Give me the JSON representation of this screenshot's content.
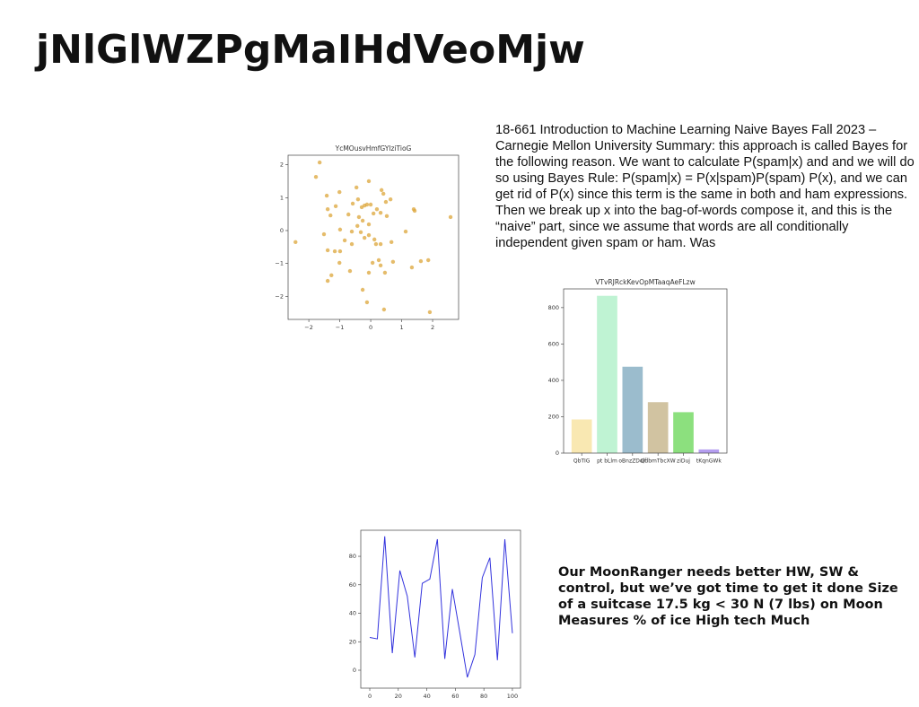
{
  "title": "jNlGlWZPgMaIHdVeoMjw",
  "paragraph": "18-661 Introduction to Machine Learning Naive Bayes Fall 2023 – Carnegie Mellon University Summary: this approach is called Bayes for the following reason. We want to calculate P(spam|x) and and we will do so using Bayes Rule: P(spam|x) = P(x|spam)P(spam) P(x), and we can get rid of P(x) since this term is the same in both and ham expressions. Then we break up x into the bag-of-words compose it, and this is the “naive” part, since we assume that words are all conditionally independent given spam or ham. Was",
  "note": "Our MoonRanger needs better HW, SW & control, but we’ve got time to get it done Size of a suitcase 17.5 kg < 30 N (7 lbs) on Moon Measures % of ice High tech Much",
  "chart_data": [
    {
      "type": "scatter",
      "title": "YcMOusvHmfGYlziTioG",
      "color": "#dca63a",
      "x": [
        -1.65,
        -1.77,
        -1.42,
        -1.01,
        -0.46,
        -0.06,
        0.35,
        0.41,
        0.49,
        0.64,
        -1.39,
        -1.3,
        -1.13,
        -0.72,
        -0.58,
        -0.41,
        -0.29,
        -0.2,
        -0.12,
        0,
        0.09,
        0.2,
        0.32,
        0.52,
        1.39,
        1.42,
        2.58,
        -0.38,
        -0.26,
        -0.06,
        -0.43,
        -0.32,
        -0.61,
        -0.99,
        -1.51,
        -2.43,
        -0.84,
        -0.61,
        -0.2,
        -0.06,
        0.12,
        0.17,
        0.32,
        0.67,
        1.13,
        -1.39,
        -1.16,
        -0.99,
        -1.01,
        0.06,
        0.26,
        0.32,
        0.72,
        1.33,
        1.62,
        1.86,
        -1.27,
        -1.39,
        -0.67,
        -0.06,
        0.46,
        -0.26,
        -0.12,
        0.43,
        1.91
      ],
      "values": [
        2.07,
        1.63,
        1.06,
        1.17,
        1.31,
        1.5,
        1.23,
        1.12,
        0.87,
        0.95,
        0.65,
        0.46,
        0.74,
        0.49,
        0.82,
        0.95,
        0.71,
        0.76,
        0.79,
        0.79,
        0.52,
        0.65,
        0.54,
        0.44,
        0.65,
        0.6,
        0.41,
        0.41,
        0.3,
        0.19,
        0.14,
        -0.05,
        -0.03,
        0.03,
        -0.11,
        -0.35,
        -0.3,
        -0.41,
        -0.22,
        -0.14,
        -0.27,
        -0.41,
        -0.41,
        -0.35,
        -0.03,
        -0.6,
        -0.63,
        -0.63,
        -0.98,
        -0.98,
        -0.9,
        -1.06,
        -0.95,
        -1.12,
        -0.93,
        -0.9,
        -1.36,
        -1.53,
        -1.23,
        -1.28,
        -1.28,
        -1.8,
        -2.18,
        -2.4,
        -2.48
      ],
      "xlim": [
        -2.67,
        2.84
      ],
      "ylim": [
        -2.7,
        2.29
      ],
      "xticks": [
        {
          "value": -2,
          "label": "−2"
        },
        {
          "value": -1,
          "label": "−1"
        },
        0,
        1,
        2
      ],
      "yticks": [
        {
          "value": -2,
          "label": "−2"
        },
        {
          "value": -1,
          "label": "−1"
        },
        0,
        1,
        2
      ]
    },
    {
      "type": "bar",
      "title": "VTvRJRckKevOpMTaaqAeFLzw",
      "categories": [
        "QbTIG",
        "pt bLlm",
        "oBnzZDolf",
        "QdbmTbcXW",
        "ziDuj",
        "tKqnGWk"
      ],
      "values": [
        185,
        865,
        475,
        280,
        225,
        20
      ],
      "colors": [
        "#f9e8b2",
        "#bff3d3",
        "#9bbccd",
        "#d1c3a1",
        "#8ce07e",
        "#b59ef0"
      ],
      "ylim": [
        0,
        903
      ],
      "yticks": [
        0,
        200,
        400,
        600,
        800
      ]
    },
    {
      "type": "line",
      "color": "#3333dd",
      "x": [
        0,
        5.3,
        10.5,
        15.8,
        21.1,
        26.3,
        31.6,
        36.8,
        42.1,
        47.4,
        52.6,
        57.9,
        63.2,
        68.4,
        73.7,
        78.9,
        84.2,
        89.5,
        94.7,
        100
      ],
      "values": [
        23,
        22,
        94,
        12,
        70,
        52,
        9,
        61,
        64,
        92,
        8,
        57,
        26,
        -5,
        11,
        65,
        79,
        7,
        92,
        26
      ],
      "xlim": [
        -6.3,
        105.7
      ],
      "ylim": [
        -12.6,
        98.3
      ],
      "xticks": [
        0,
        20,
        40,
        60,
        80,
        100
      ],
      "yticks": [
        0,
        20,
        40,
        60,
        80
      ]
    }
  ]
}
